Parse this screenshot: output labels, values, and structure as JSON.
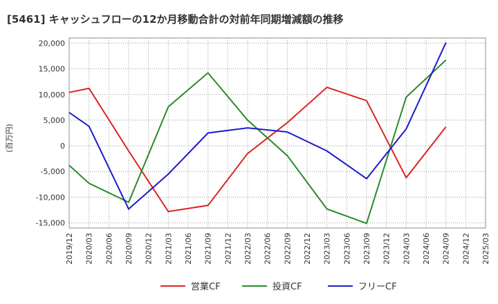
{
  "chart_data": {
    "type": "line",
    "title": "[5461]  キャッシュフローの12か月移動合計の対前年同期増減額の推移",
    "ylabel": "(百万円)",
    "xlabel": "",
    "ylim": [
      -16000,
      21000
    ],
    "yticks": [
      20000,
      15000,
      10000,
      5000,
      0,
      -5000,
      -10000,
      -15000
    ],
    "ytick_labels": [
      "20,000",
      "15,000",
      "10,000",
      "5,000",
      "0",
      "-5,000",
      "-10,000",
      "-15,000"
    ],
    "categories": [
      "2019/12",
      "2020/03",
      "2020/06",
      "2020/09",
      "2020/12",
      "2021/03",
      "2021/06",
      "2021/09",
      "2021/12",
      "2022/03",
      "2022/06",
      "2022/09",
      "2022/12",
      "2023/03",
      "2023/06",
      "2023/09",
      "2023/12",
      "2024/03",
      "2024/06",
      "2024/09",
      "2024/12",
      "2025/03"
    ],
    "grid": true,
    "legend_position": "bottom",
    "series": [
      {
        "name": "営業CF",
        "color": "#dd2222",
        "points": [
          {
            "x": "2019/12",
            "y": 10400
          },
          {
            "x": "2020/03",
            "y": 11200
          },
          {
            "x": "2020/09",
            "y": -1000
          },
          {
            "x": "2021/03",
            "y": -12800
          },
          {
            "x": "2021/09",
            "y": -11600
          },
          {
            "x": "2022/03",
            "y": -1500
          },
          {
            "x": "2022/09",
            "y": 4500
          },
          {
            "x": "2023/03",
            "y": 11400
          },
          {
            "x": "2023/09",
            "y": 8800
          },
          {
            "x": "2024/03",
            "y": -6200
          },
          {
            "x": "2024/09",
            "y": 3700
          }
        ]
      },
      {
        "name": "投資CF",
        "color": "#2a8a2a",
        "points": [
          {
            "x": "2019/12",
            "y": -3800
          },
          {
            "x": "2020/03",
            "y": -7300
          },
          {
            "x": "2020/09",
            "y": -11000
          },
          {
            "x": "2021/03",
            "y": 7600
          },
          {
            "x": "2021/09",
            "y": 14200
          },
          {
            "x": "2022/03",
            "y": 5000
          },
          {
            "x": "2022/09",
            "y": -1900
          },
          {
            "x": "2023/03",
            "y": -12300
          },
          {
            "x": "2023/09",
            "y": -15100
          },
          {
            "x": "2024/03",
            "y": 9500
          },
          {
            "x": "2024/09",
            "y": 16700
          }
        ]
      },
      {
        "name": "フリーCF",
        "color": "#1a1acc",
        "points": [
          {
            "x": "2019/12",
            "y": 6500
          },
          {
            "x": "2020/03",
            "y": 3800
          },
          {
            "x": "2020/09",
            "y": -12300
          },
          {
            "x": "2021/03",
            "y": -5500
          },
          {
            "x": "2021/09",
            "y": 2500
          },
          {
            "x": "2022/03",
            "y": 3500
          },
          {
            "x": "2022/09",
            "y": 2700
          },
          {
            "x": "2023/03",
            "y": -1000
          },
          {
            "x": "2023/09",
            "y": -6400
          },
          {
            "x": "2024/03",
            "y": 3300
          },
          {
            "x": "2024/09",
            "y": 20100
          }
        ]
      }
    ]
  }
}
